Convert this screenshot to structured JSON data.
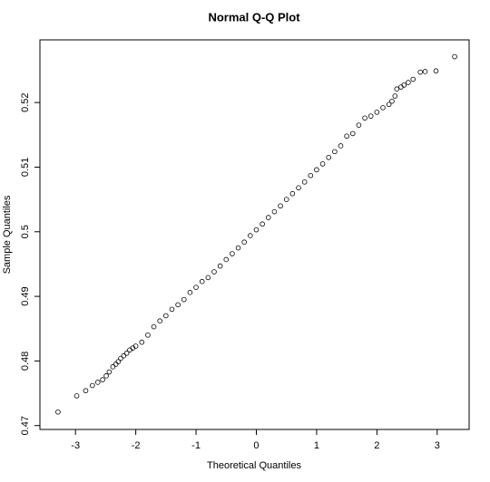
{
  "chart_data": {
    "type": "scatter",
    "title": "Normal Q-Q Plot",
    "x_label": "Theoretical Quantiles",
    "y_label": "Sample Quantiles",
    "xlim": [
      -3.59,
      3.53
    ],
    "ylim": [
      0.4694,
      0.5297
    ],
    "xticks": [
      -3,
      -2,
      -1,
      0,
      1,
      2,
      3
    ],
    "yticks": [
      0.47,
      0.48,
      0.49,
      0.5,
      0.51,
      0.52
    ],
    "color": "#000000",
    "x": [
      -3.29,
      -2.98,
      -2.83,
      -2.72,
      -2.63,
      -2.55,
      -2.49,
      -2.44,
      -2.38,
      -2.33,
      -2.29,
      -2.25,
      -2.2,
      -2.15,
      -2.1,
      -2.05,
      -2.0,
      -1.9,
      -1.8,
      -1.7,
      -1.6,
      -1.5,
      -1.4,
      -1.3,
      -1.2,
      -1.1,
      -1.0,
      -0.9,
      -0.8,
      -0.7,
      -0.6,
      -0.5,
      -0.4,
      -0.3,
      -0.2,
      -0.1,
      0,
      0.1,
      0.2,
      0.3,
      0.4,
      0.5,
      0.6,
      0.7,
      0.8,
      0.9,
      1.0,
      1.1,
      1.2,
      1.3,
      1.4,
      1.5,
      1.6,
      1.7,
      1.8,
      1.9,
      2.0,
      2.1,
      2.2,
      2.25,
      2.3,
      2.33,
      2.4,
      2.45,
      2.52,
      2.6,
      2.72,
      2.8,
      2.98,
      3.29
    ],
    "values": [
      0.4721,
      0.4746,
      0.4754,
      0.4762,
      0.4767,
      0.4771,
      0.4777,
      0.4783,
      0.4791,
      0.4795,
      0.4799,
      0.4804,
      0.4808,
      0.4812,
      0.4817,
      0.482,
      0.4823,
      0.4829,
      0.484,
      0.4853,
      0.4862,
      0.487,
      0.488,
      0.4887,
      0.4895,
      0.4906,
      0.4914,
      0.4923,
      0.4929,
      0.4938,
      0.4947,
      0.4957,
      0.4966,
      0.4975,
      0.4984,
      0.4994,
      0.5003,
      0.5012,
      0.5022,
      0.5031,
      0.504,
      0.505,
      0.5059,
      0.5068,
      0.5077,
      0.5087,
      0.5096,
      0.5105,
      0.5115,
      0.5124,
      0.5133,
      0.5148,
      0.5152,
      0.5165,
      0.5176,
      0.5179,
      0.5185,
      0.5192,
      0.5197,
      0.5202,
      0.521,
      0.5221,
      0.5224,
      0.5227,
      0.5231,
      0.5236,
      0.5247,
      0.5248,
      0.5249,
      0.5271
    ]
  }
}
